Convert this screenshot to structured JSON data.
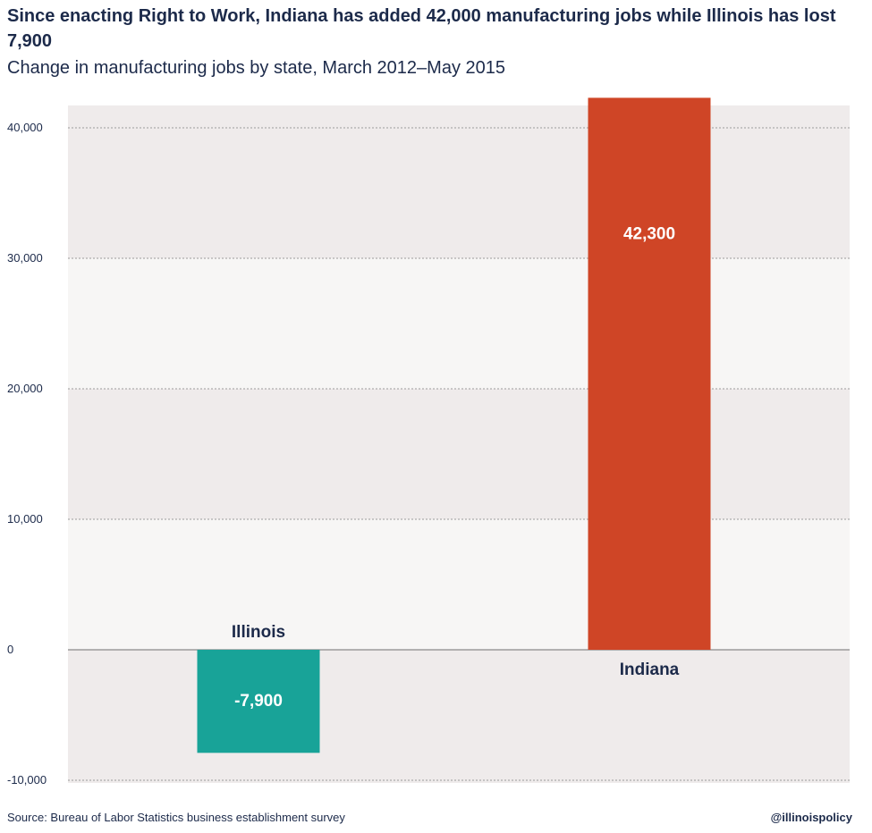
{
  "chart_data": {
    "type": "bar",
    "title": "Since enacting Right to Work, Indiana has added 42,000 manufacturing jobs while Illinois has lost 7,900",
    "subtitle": "Change in manufacturing jobs by state, March 2012–May 2015",
    "categories": [
      "Illinois",
      "Indiana"
    ],
    "values": [
      -7900,
      42300
    ],
    "data_labels": [
      "-7,900",
      "42,300"
    ],
    "colors": [
      "#18a398",
      "#cf4526"
    ],
    "ylim": [
      -10000,
      40000
    ],
    "yticks": [
      40000,
      30000,
      20000,
      10000,
      0,
      -10000
    ],
    "ytick_labels": [
      "40,000",
      "30,000",
      "20,000",
      "10,000",
      "0",
      "-10,000"
    ],
    "grid": true,
    "source": "Source: Bureau of Labor Statistics business establishment survey",
    "handle": "@illinoispolicy"
  }
}
